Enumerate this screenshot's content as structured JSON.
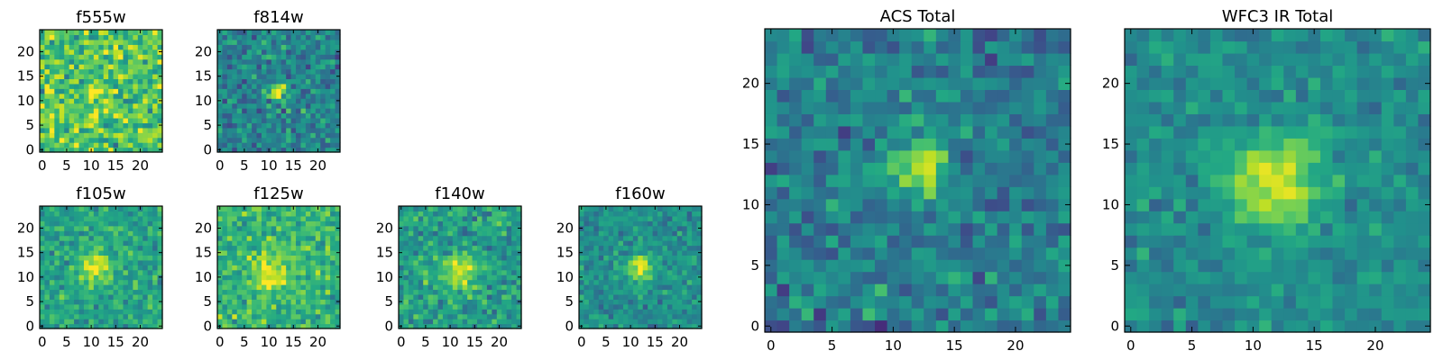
{
  "colormap": [
    "#440154",
    "#482475",
    "#414487",
    "#355f8d",
    "#2a788e",
    "#21918c",
    "#22a884",
    "#44bf70",
    "#7ad151",
    "#bddf26",
    "#fde725"
  ],
  "chart_data": [
    {
      "type": "heatmap",
      "title": "f555w",
      "xlabel": "",
      "ylabel": "",
      "grid_size": 25,
      "xlim": [
        -0.5,
        24.5
      ],
      "ylim": [
        -0.5,
        24.5
      ],
      "xticks": [
        0,
        5,
        10,
        15,
        20
      ],
      "xtick_labels": [
        "0",
        "5",
        "10",
        "15",
        "20"
      ],
      "yticks": [
        0,
        5,
        10,
        15,
        20
      ],
      "ytick_labels": [
        "0",
        "5",
        "10",
        "15",
        "20"
      ],
      "source": {
        "center": [
          11,
          12
        ],
        "sigma": 1.5,
        "amplitude": 0.2
      },
      "noise": {
        "background": 0.72,
        "scatter": 0.14,
        "seed": 11
      },
      "value_range": [
        0,
        1
      ]
    },
    {
      "type": "heatmap",
      "title": "f814w",
      "xlabel": "",
      "ylabel": "",
      "grid_size": 25,
      "xlim": [
        -0.5,
        24.5
      ],
      "ylim": [
        -0.5,
        24.5
      ],
      "xticks": [
        0,
        5,
        10,
        15,
        20
      ],
      "xtick_labels": [
        "0",
        "5",
        "10",
        "15",
        "20"
      ],
      "yticks": [
        0,
        5,
        10,
        15,
        20
      ],
      "ytick_labels": [
        "0",
        "5",
        "10",
        "15",
        "20"
      ],
      "source": {
        "center": [
          12,
          12
        ],
        "sigma": 1.1,
        "amplitude": 0.6
      },
      "noise": {
        "background": 0.45,
        "scatter": 0.11,
        "seed": 27
      },
      "value_range": [
        0,
        1
      ]
    },
    {
      "type": "heatmap",
      "title": "f105w",
      "xlabel": "",
      "ylabel": "",
      "grid_size": 25,
      "xlim": [
        -0.5,
        24.5
      ],
      "ylim": [
        -0.5,
        24.5
      ],
      "xticks": [
        0,
        5,
        10,
        15,
        20
      ],
      "xtick_labels": [
        "0",
        "5",
        "10",
        "15",
        "20"
      ],
      "yticks": [
        0,
        5,
        10,
        15,
        20
      ],
      "ytick_labels": [
        "0",
        "5",
        "10",
        "15",
        "20"
      ],
      "source": {
        "center": [
          11,
          12
        ],
        "sigma": 2.3,
        "amplitude": 0.42
      },
      "noise": {
        "background": 0.58,
        "scatter": 0.09,
        "seed": 43
      },
      "value_range": [
        0,
        1
      ]
    },
    {
      "type": "heatmap",
      "title": "f125w",
      "xlabel": "",
      "ylabel": "",
      "grid_size": 25,
      "xlim": [
        -0.5,
        24.5
      ],
      "ylim": [
        -0.5,
        24.5
      ],
      "xticks": [
        0,
        5,
        10,
        15,
        20
      ],
      "xtick_labels": [
        "0",
        "5",
        "10",
        "15",
        "20"
      ],
      "yticks": [
        0,
        5,
        10,
        15,
        20
      ],
      "ytick_labels": [
        "0",
        "5",
        "10",
        "15",
        "20"
      ],
      "source": {
        "center": [
          11,
          11
        ],
        "sigma": 2.8,
        "amplitude": 0.3
      },
      "noise": {
        "background": 0.66,
        "scatter": 0.1,
        "seed": 59
      },
      "value_range": [
        0,
        1
      ]
    },
    {
      "type": "heatmap",
      "title": "f140w",
      "xlabel": "",
      "ylabel": "",
      "grid_size": 25,
      "xlim": [
        -0.5,
        24.5
      ],
      "ylim": [
        -0.5,
        24.5
      ],
      "xticks": [
        0,
        5,
        10,
        15,
        20
      ],
      "xtick_labels": [
        "0",
        "5",
        "10",
        "15",
        "20"
      ],
      "yticks": [
        0,
        5,
        10,
        15,
        20
      ],
      "ytick_labels": [
        "0",
        "5",
        "10",
        "15",
        "20"
      ],
      "source": {
        "center": [
          12,
          11
        ],
        "sigma": 2.6,
        "amplitude": 0.35
      },
      "noise": {
        "background": 0.55,
        "scatter": 0.1,
        "seed": 71
      },
      "value_range": [
        0,
        1
      ]
    },
    {
      "type": "heatmap",
      "title": "f160w",
      "xlabel": "",
      "ylabel": "",
      "grid_size": 25,
      "xlim": [
        -0.5,
        24.5
      ],
      "ylim": [
        -0.5,
        24.5
      ],
      "xticks": [
        0,
        5,
        10,
        15,
        20
      ],
      "xtick_labels": [
        "0",
        "5",
        "10",
        "15",
        "20"
      ],
      "yticks": [
        0,
        5,
        10,
        15,
        20
      ],
      "ytick_labels": [
        "0",
        "5",
        "10",
        "15",
        "20"
      ],
      "source": {
        "center": [
          12,
          12
        ],
        "sigma": 1.9,
        "amplitude": 0.45
      },
      "noise": {
        "background": 0.5,
        "scatter": 0.08,
        "seed": 83
      },
      "value_range": [
        0,
        1
      ]
    },
    {
      "type": "heatmap",
      "title": "ACS Total",
      "xlabel": "",
      "ylabel": "",
      "grid_size": 25,
      "xlim": [
        -0.5,
        24.5
      ],
      "ylim": [
        -0.5,
        24.5
      ],
      "xticks": [
        0,
        5,
        10,
        15,
        20
      ],
      "xtick_labels": [
        "0",
        "5",
        "10",
        "15",
        "20"
      ],
      "yticks": [
        0,
        5,
        10,
        15,
        20
      ],
      "ytick_labels": [
        "0",
        "5",
        "10",
        "15",
        "20"
      ],
      "source": {
        "center": [
          12,
          13
        ],
        "sigma": 1.4,
        "amplitude": 0.6
      },
      "noise": {
        "background": 0.42,
        "scatter": 0.1,
        "seed": 97
      },
      "value_range": [
        0,
        1
      ]
    },
    {
      "type": "heatmap",
      "title": "WFC3 IR Total",
      "xlabel": "",
      "ylabel": "",
      "grid_size": 25,
      "xlim": [
        -0.5,
        24.5
      ],
      "ylim": [
        -0.5,
        24.5
      ],
      "xticks": [
        0,
        5,
        10,
        15,
        20
      ],
      "xtick_labels": [
        "0",
        "5",
        "10",
        "15",
        "20"
      ],
      "yticks": [
        0,
        5,
        10,
        15,
        20
      ],
      "ytick_labels": [
        "0",
        "5",
        "10",
        "15",
        "20"
      ],
      "source": {
        "center": [
          12,
          12
        ],
        "sigma": 2.6,
        "amplitude": 0.5
      },
      "noise": {
        "background": 0.48,
        "scatter": 0.07,
        "seed": 113
      },
      "value_range": [
        0,
        1
      ]
    }
  ]
}
